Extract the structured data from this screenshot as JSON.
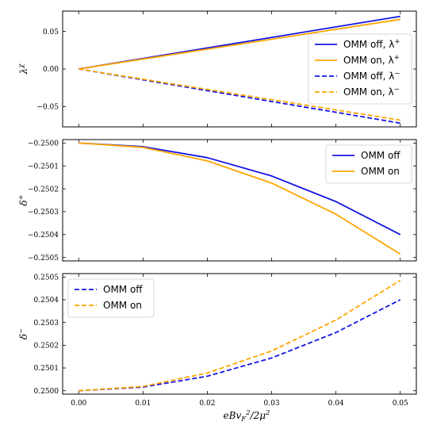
{
  "colors": {
    "off": "#1414e6",
    "on": "#ffa500"
  },
  "x_axis": {
    "label": "eBv_F^2/2μ^2",
    "ticks": [
      0.0,
      0.01,
      0.02,
      0.03,
      0.04,
      0.05
    ],
    "tick_labels": [
      "0.00",
      "0.01",
      "0.02",
      "0.03",
      "0.04",
      "0.05"
    ]
  },
  "chart_data": [
    {
      "type": "line",
      "ylabel": "λ^χ",
      "xlim": [
        -0.0025,
        0.0525
      ],
      "ylim": [
        -0.077,
        0.077
      ],
      "yticks": [
        -0.05,
        0.0,
        0.05
      ],
      "ytick_labels": [
        "−0.05",
        "0.00",
        "0.05"
      ],
      "legend": "right",
      "x": [
        0.0,
        0.05
      ],
      "series": [
        {
          "name": "OMM off, λ+",
          "label_main": "OMM off, λ",
          "label_sup": "+",
          "color": "off",
          "dash": false,
          "values": [
            0.0,
            0.07
          ]
        },
        {
          "name": "OMM on, λ+",
          "label_main": "OMM on, λ",
          "label_sup": "+",
          "color": "on",
          "dash": false,
          "values": [
            0.0,
            0.066
          ]
        },
        {
          "name": "OMM off, λ−",
          "label_main": "OMM off, λ",
          "label_sup": "−",
          "color": "off",
          "dash": true,
          "values": [
            0.0,
            -0.072
          ]
        },
        {
          "name": "OMM on, λ−",
          "label_main": "OMM on, λ",
          "label_sup": "−",
          "color": "on",
          "dash": true,
          "values": [
            0.0,
            -0.068
          ]
        }
      ]
    },
    {
      "type": "line",
      "ylabel": "δ^+",
      "xlim": [
        -0.0025,
        0.0525
      ],
      "ylim": [
        -0.250515,
        -0.249985
      ],
      "yticks": [
        -0.25,
        -0.2501,
        -0.2502,
        -0.2503,
        -0.2504,
        -0.2505
      ],
      "ytick_labels": [
        "−0.2500",
        "−0.2501",
        "−0.2502",
        "−0.2503",
        "−0.2504",
        "−0.2505"
      ],
      "legend": "top-right",
      "x": [
        0.0,
        0.01,
        0.02,
        0.03,
        0.04,
        0.05
      ],
      "series": [
        {
          "name": "OMM off",
          "label_main": "OMM off",
          "label_sup": "",
          "color": "off",
          "dash": false,
          "values": [
            -0.25,
            -0.250016,
            -0.250064,
            -0.250144,
            -0.250256,
            -0.2504
          ]
        },
        {
          "name": "OMM on",
          "label_main": "OMM on",
          "label_sup": "",
          "color": "on",
          "dash": false,
          "values": [
            -0.25,
            -0.250019,
            -0.250078,
            -0.250175,
            -0.250311,
            -0.250485
          ]
        }
      ]
    },
    {
      "type": "line",
      "ylabel": "δ^−",
      "xlim": [
        -0.0025,
        0.0525
      ],
      "ylim": [
        0.249985,
        0.250515
      ],
      "yticks": [
        0.25,
        0.2501,
        0.2502,
        0.2503,
        0.2504,
        0.2505
      ],
      "ytick_labels": [
        "0.2500",
        "0.2501",
        "0.2502",
        "0.2503",
        "0.2504",
        "0.2505"
      ],
      "legend": "top-left",
      "x": [
        0.0,
        0.01,
        0.02,
        0.03,
        0.04,
        0.05
      ],
      "series": [
        {
          "name": "OMM off",
          "label_main": "OMM off",
          "label_sup": "",
          "color": "off",
          "dash": true,
          "values": [
            0.25,
            0.250016,
            0.250064,
            0.250144,
            0.250256,
            0.2504
          ]
        },
        {
          "name": "OMM on",
          "label_main": "OMM on",
          "label_sup": "",
          "color": "on",
          "dash": true,
          "values": [
            0.25,
            0.250019,
            0.250078,
            0.250175,
            0.250311,
            0.250485
          ]
        }
      ]
    }
  ]
}
